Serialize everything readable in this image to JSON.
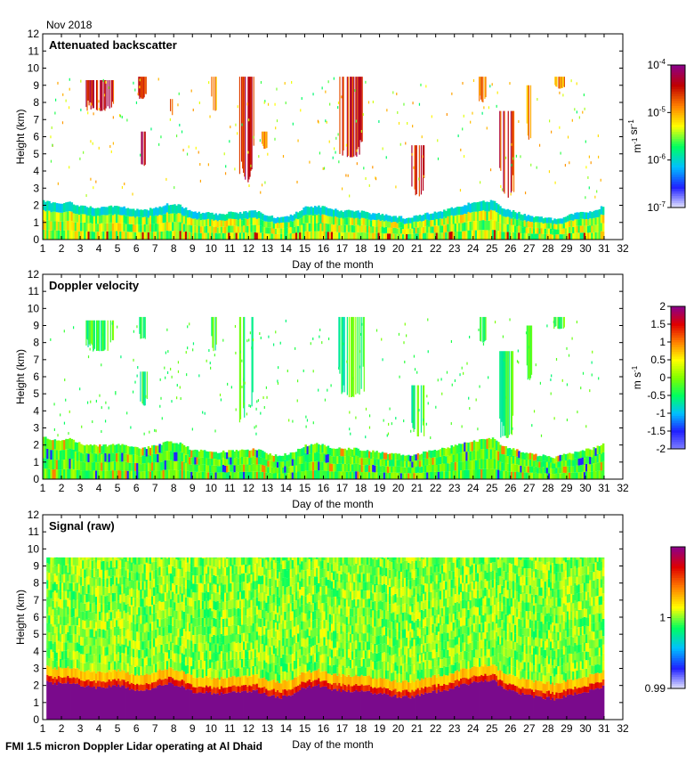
{
  "date_label": "Nov 2018",
  "footer": "FMI 1.5 micron Doppler Lidar operating at Al Dhaid",
  "chart_data": [
    {
      "type": "heatmap",
      "title": "Attenuated backscatter",
      "xlabel": "Day of the month",
      "ylabel": "Height (km)",
      "xlim": [
        1,
        32
      ],
      "ylim": [
        0,
        12
      ],
      "xticks": [
        1,
        2,
        3,
        4,
        5,
        6,
        7,
        8,
        9,
        10,
        11,
        12,
        13,
        14,
        15,
        16,
        17,
        18,
        19,
        20,
        21,
        22,
        23,
        24,
        25,
        26,
        27,
        28,
        29,
        30,
        31,
        32
      ],
      "yticks": [
        0,
        1,
        2,
        3,
        4,
        5,
        6,
        7,
        8,
        9,
        10,
        11,
        12
      ],
      "colorbar": {
        "scale": "log",
        "range": [
          1e-07,
          0.0001
        ],
        "tick_labels": [
          "10-7",
          "10-6",
          "10-5",
          "10-4"
        ],
        "ticks": [
          1e-07,
          1e-06,
          1e-05,
          0.0001
        ],
        "units": "m-1 sr-1",
        "colormap": [
          "#e8e8ff",
          "#2020ff",
          "#00c0ff",
          "#00ff60",
          "#ffff00",
          "#ff8000",
          "#c00000",
          "#8b008b"
        ]
      },
      "boundary_layer_top_km": [
        2.2,
        2.0,
        2.1,
        1.9,
        1.8,
        1.8,
        1.9,
        1.7,
        1.6,
        1.8,
        2.0,
        1.9,
        1.5,
        1.5,
        1.4,
        1.5,
        1.5,
        1.6,
        1.3,
        1.2,
        1.4,
        1.8,
        1.9,
        1.7,
        1.6,
        1.6,
        1.5,
        1.4,
        1.3,
        1.2,
        1.3,
        1.5,
        1.6,
        1.8,
        2.0,
        2.1,
        2.2,
        1.7,
        1.5,
        1.3,
        1.2,
        1.1,
        1.3,
        1.5,
        1.6,
        1.9
      ],
      "cloud_features": [
        {
          "day_start": 3.3,
          "day_end": 4.8,
          "base_km": 7.5,
          "top_km": 9.3,
          "level": "high"
        },
        {
          "day_start": 6.1,
          "day_end": 6.5,
          "base_km": 8.2,
          "top_km": 9.5,
          "level": "high"
        },
        {
          "day_start": 6.2,
          "day_end": 6.6,
          "base_km": 4.3,
          "top_km": 6.3,
          "level": "high"
        },
        {
          "day_start": 7.8,
          "day_end": 8.1,
          "base_km": 7.2,
          "top_km": 8.2,
          "level": "medium"
        },
        {
          "day_start": 10.0,
          "day_end": 10.3,
          "base_km": 7.5,
          "top_km": 9.5,
          "level": "medium"
        },
        {
          "day_start": 11.5,
          "day_end": 12.3,
          "base_km": 3.3,
          "top_km": 9.5,
          "level": "high"
        },
        {
          "day_start": 12.7,
          "day_end": 13.0,
          "base_km": 5.3,
          "top_km": 6.3,
          "level": "medium"
        },
        {
          "day_start": 16.7,
          "day_end": 18.2,
          "base_km": 4.8,
          "top_km": 9.5,
          "level": "high"
        },
        {
          "day_start": 20.7,
          "day_end": 21.4,
          "base_km": 2.5,
          "top_km": 5.5,
          "level": "high"
        },
        {
          "day_start": 24.3,
          "day_end": 24.7,
          "base_km": 8.0,
          "top_km": 9.5,
          "level": "medium"
        },
        {
          "day_start": 25.4,
          "day_end": 26.2,
          "base_km": 2.4,
          "top_km": 7.5,
          "level": "high"
        },
        {
          "day_start": 26.8,
          "day_end": 27.2,
          "base_km": 5.8,
          "top_km": 9.0,
          "level": "medium"
        },
        {
          "day_start": 28.3,
          "day_end": 28.9,
          "base_km": 8.8,
          "top_km": 9.5,
          "level": "medium"
        }
      ]
    },
    {
      "type": "heatmap",
      "title": "Doppler velocity",
      "xlabel": "Day of the month",
      "ylabel": "Height (km)",
      "xlim": [
        1,
        32
      ],
      "ylim": [
        0,
        12
      ],
      "xticks": [
        1,
        2,
        3,
        4,
        5,
        6,
        7,
        8,
        9,
        10,
        11,
        12,
        13,
        14,
        15,
        16,
        17,
        18,
        19,
        20,
        21,
        22,
        23,
        24,
        25,
        26,
        27,
        28,
        29,
        30,
        31,
        32
      ],
      "yticks": [
        0,
        1,
        2,
        3,
        4,
        5,
        6,
        7,
        8,
        9,
        10,
        11,
        12
      ],
      "colorbar": {
        "scale": "linear",
        "range": [
          -2,
          2
        ],
        "ticks": [
          -2,
          -1.5,
          -1,
          -0.5,
          0,
          0.5,
          1,
          1.5,
          2
        ],
        "tick_labels": [
          "-2",
          "-1.5",
          "-1",
          "-0.5",
          "0",
          "0.5",
          "1",
          "1.5",
          "2"
        ],
        "units": "m s-1",
        "colormap": [
          "#8080ff",
          "#2020ff",
          "#00c0ff",
          "#00ff60",
          "#80ff00",
          "#ffff00",
          "#ff8000",
          "#e00000",
          "#8b008b"
        ]
      },
      "boundary_layer_top_km": [
        2.4,
        2.2,
        2.3,
        2.0,
        1.9,
        1.9,
        2.0,
        1.8,
        1.7,
        1.9,
        2.1,
        2.0,
        1.6,
        1.6,
        1.5,
        1.6,
        1.6,
        1.7,
        1.4,
        1.3,
        1.5,
        1.9,
        2.0,
        1.8,
        1.7,
        1.7,
        1.6,
        1.5,
        1.4,
        1.3,
        1.4,
        1.6,
        1.7,
        1.9,
        2.1,
        2.2,
        2.3,
        1.8,
        1.6,
        1.4,
        1.3,
        1.2,
        1.4,
        1.6,
        1.7,
        2.0
      ],
      "cloud_features": [
        {
          "day_start": 3.3,
          "day_end": 4.8,
          "base_km": 7.5,
          "top_km": 9.3,
          "level": "low"
        },
        {
          "day_start": 6.1,
          "day_end": 6.5,
          "base_km": 8.2,
          "top_km": 9.5,
          "level": "low"
        },
        {
          "day_start": 6.2,
          "day_end": 6.6,
          "base_km": 4.3,
          "top_km": 6.3,
          "level": "low"
        },
        {
          "day_start": 10.0,
          "day_end": 10.3,
          "base_km": 7.5,
          "top_km": 9.5,
          "level": "low"
        },
        {
          "day_start": 11.5,
          "day_end": 12.3,
          "base_km": 3.3,
          "top_km": 9.5,
          "level": "low"
        },
        {
          "day_start": 16.7,
          "day_end": 18.2,
          "base_km": 4.8,
          "top_km": 9.5,
          "level": "low"
        },
        {
          "day_start": 20.7,
          "day_end": 21.4,
          "base_km": 2.5,
          "top_km": 5.5,
          "level": "low"
        },
        {
          "day_start": 24.3,
          "day_end": 24.7,
          "base_km": 8.0,
          "top_km": 9.5,
          "level": "low"
        },
        {
          "day_start": 25.4,
          "day_end": 26.2,
          "base_km": 2.4,
          "top_km": 7.5,
          "level": "low"
        },
        {
          "day_start": 26.8,
          "day_end": 27.2,
          "base_km": 5.8,
          "top_km": 9.0,
          "level": "low"
        },
        {
          "day_start": 28.3,
          "day_end": 28.9,
          "base_km": 8.8,
          "top_km": 9.5,
          "level": "low"
        }
      ]
    },
    {
      "type": "heatmap",
      "title": "Signal (raw)",
      "xlabel": "Day of the month",
      "ylabel": "Height (km)",
      "xlim": [
        1,
        32
      ],
      "ylim": [
        0,
        12
      ],
      "xticks": [
        1,
        2,
        3,
        4,
        5,
        6,
        7,
        8,
        9,
        10,
        11,
        12,
        13,
        14,
        15,
        16,
        17,
        18,
        19,
        20,
        21,
        22,
        23,
        24,
        25,
        26,
        27,
        28,
        29,
        30,
        31,
        32
      ],
      "yticks": [
        0,
        1,
        2,
        3,
        4,
        5,
        6,
        7,
        8,
        9,
        10,
        11,
        12
      ],
      "data_day_range": [
        1.2,
        31.0
      ],
      "data_top_km": 9.5,
      "colorbar": {
        "scale": "linear",
        "range": [
          0.99,
          1.01
        ],
        "ticks": [
          0.99,
          1
        ],
        "tick_labels": [
          "0.99",
          "1"
        ],
        "units": "",
        "colormap": [
          "#e8e8ff",
          "#2020ff",
          "#00c0ff",
          "#00ff60",
          "#ffff00",
          "#ff8000",
          "#e00000",
          "#8b008b"
        ]
      },
      "boundary_layer_top_km": [
        2.2,
        2.0,
        2.1,
        1.9,
        1.8,
        1.8,
        1.9,
        1.7,
        1.6,
        1.8,
        2.0,
        1.9,
        1.5,
        1.5,
        1.4,
        1.5,
        1.5,
        1.6,
        1.3,
        1.2,
        1.4,
        1.8,
        1.9,
        1.7,
        1.6,
        1.6,
        1.5,
        1.4,
        1.3,
        1.2,
        1.3,
        1.5,
        1.6,
        1.8,
        2.0,
        2.1,
        2.2,
        1.7,
        1.5,
        1.3,
        1.2,
        1.1,
        1.3,
        1.5,
        1.6,
        1.9
      ]
    }
  ]
}
